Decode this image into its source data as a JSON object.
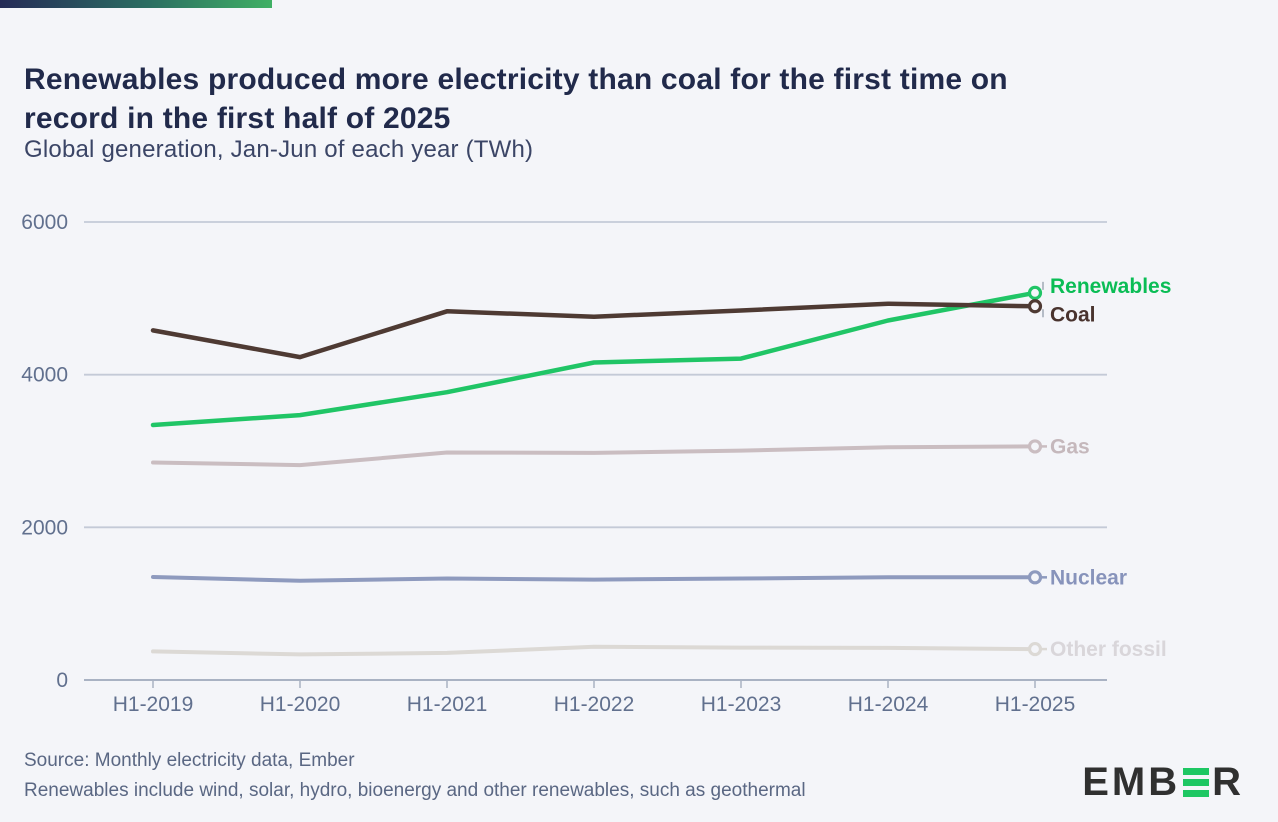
{
  "page": {
    "background": "#f4f5f9",
    "accent_bar_colors": [
      "#252b57",
      "#40b065"
    ]
  },
  "header": {
    "title_lines": [
      "Renewables produced more electricity than coal for the first time on",
      "record in the first half of 2025"
    ],
    "subtitle": "Global generation, Jan-Jun of each year (TWh)"
  },
  "chart_data": {
    "type": "line",
    "title": "Renewables produced more electricity than coal for the first time on record in the first half of 2025",
    "subtitle": "Global generation, Jan-Jun of each year (TWh)",
    "unit": "TWh",
    "xlabel": "",
    "ylabel": "",
    "categories": [
      "H1-2019",
      "H1-2020",
      "H1-2021",
      "H1-2022",
      "H1-2023",
      "H1-2024",
      "H1-2025"
    ],
    "ylim": [
      0,
      6000
    ],
    "yticks": [
      0,
      2000,
      4000,
      6000
    ],
    "grid": "horizontal",
    "legend_position": "end-of-line-labels-right",
    "axis_color": "#a9b2c3",
    "gridline_color": "#c4cad7",
    "tick_label_color": "#61708e",
    "series": [
      {
        "name": "Renewables",
        "color": "#20c566",
        "label_color": "#0abd55",
        "line_width": 4.5,
        "label_offset": -7,
        "values": [
          3340,
          3470,
          3770,
          4160,
          4210,
          4710,
          5072
        ]
      },
      {
        "name": "Coal",
        "color": "#4e3a33",
        "label_color": "#49332e",
        "line_width": 4.5,
        "label_offset": 8,
        "values": [
          4580,
          4230,
          4830,
          4760,
          4840,
          4930,
          4896
        ]
      },
      {
        "name": "Gas",
        "color": "#cabdc1",
        "label_color": "#c5b8bc",
        "line_width": 4,
        "label_offset": 0,
        "values": [
          2850,
          2815,
          2980,
          2975,
          3005,
          3050,
          3060
        ]
      },
      {
        "name": "Nuclear",
        "color": "#8e9abe",
        "label_color": "#8793bb",
        "line_width": 4,
        "label_offset": 0,
        "values": [
          1350,
          1300,
          1330,
          1315,
          1330,
          1345,
          1345
        ]
      },
      {
        "name": "Other fossil",
        "color": "#dcd9d5",
        "label_color": "#d9d6da",
        "line_width": 4,
        "label_offset": 0,
        "values": [
          375,
          335,
          355,
          435,
          425,
          420,
          405
        ]
      }
    ]
  },
  "footer": {
    "source_line": "Source: Monthly electricity data, Ember",
    "note_line": "Renewables include wind, solar, hydro, bioenergy and other renewables, such as geothermal"
  },
  "logo": {
    "text_before": "EMB",
    "text_after": "R",
    "dark_color": "#303030",
    "green_color": "#1ec763"
  }
}
